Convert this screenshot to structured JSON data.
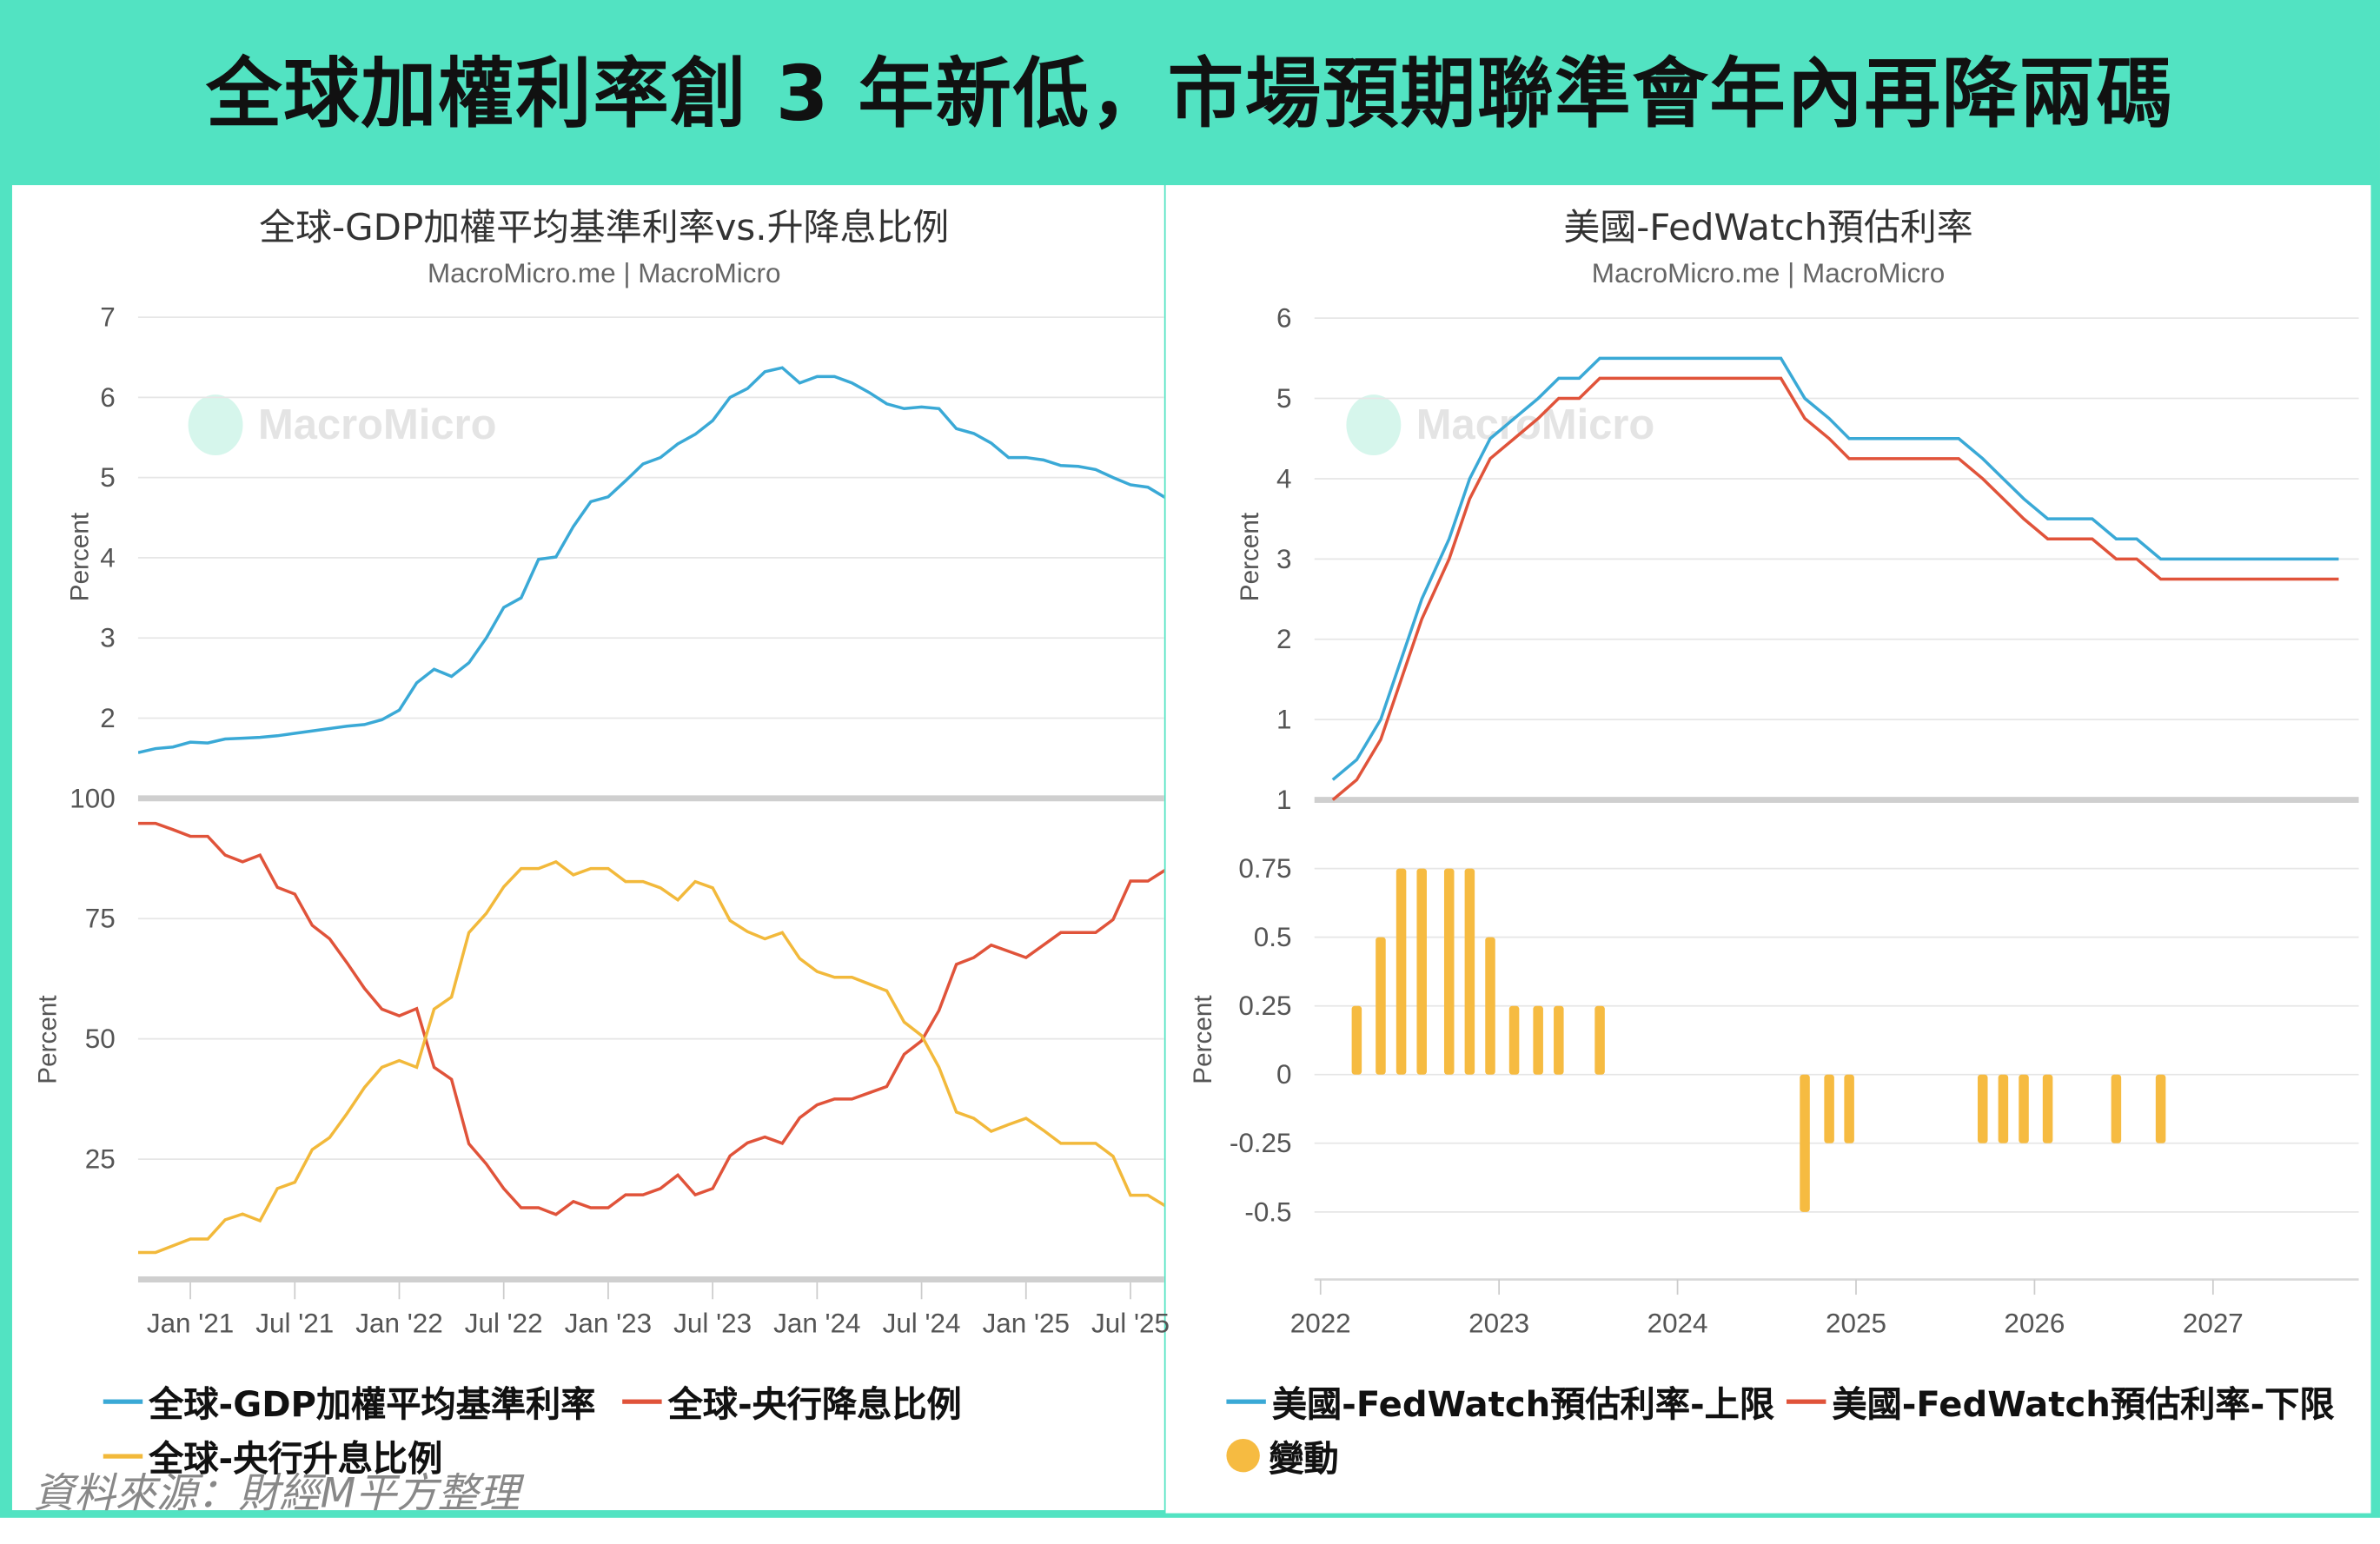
{
  "headline": "全球加權利率創 3 年新低，市場預期聯準會年內再降兩碼",
  "source_note": "資料來源：財經M平方整理",
  "watermark": "MacroMicro",
  "colors": {
    "frame": "#52e3c2",
    "blue": "#3aa9d6",
    "red": "#e0533a",
    "yellow": "#f2b93b",
    "bar": "#f6bb41"
  },
  "chart_data": [
    {
      "type": "line",
      "title": "全球-GDP加權平均基準利率vs.升降息比例",
      "subtitle": "MacroMicro.me | MacroMicro",
      "x_tick_labels": [
        "Jan '21",
        "Jul '21",
        "Jan '22",
        "Jul '22",
        "Jan '23",
        "Jul '23",
        "Jan '24",
        "Jul '24",
        "Jan '25",
        "Jul '25"
      ],
      "x_start": "2020-10",
      "x_end": "2025-09",
      "x_frequency": "monthly",
      "panes": [
        {
          "ylabel": "Percent",
          "ylim": [
            1,
            7
          ],
          "y_ticks": [
            2,
            3,
            4,
            5,
            6,
            7
          ],
          "series_index": [
            0
          ]
        },
        {
          "ylabel": "Percent",
          "ylim": [
            0,
            100
          ],
          "y_ticks": [
            25,
            50,
            75,
            100
          ],
          "series_index": [
            1,
            2
          ]
        }
      ],
      "series": [
        {
          "name": "全球-GDP加權平均基準利率",
          "color": "#3aa9d6",
          "values": [
            1.57,
            1.62,
            1.64,
            1.7,
            1.69,
            1.74,
            1.75,
            1.76,
            1.78,
            1.81,
            1.84,
            1.87,
            1.9,
            1.92,
            1.98,
            2.1,
            2.44,
            2.61,
            2.52,
            2.69,
            3.0,
            3.38,
            3.5,
            3.98,
            4.01,
            4.39,
            4.7,
            4.76,
            4.96,
            5.17,
            5.25,
            5.42,
            5.54,
            5.71,
            6.0,
            6.11,
            6.32,
            6.37,
            6.18,
            6.26,
            6.26,
            6.18,
            6.06,
            5.92,
            5.86,
            5.88,
            5.86,
            5.61,
            5.55,
            5.43,
            5.25,
            5.25,
            5.22,
            5.15,
            5.14,
            5.1,
            5.0,
            4.91,
            4.88,
            4.75
          ]
        },
        {
          "name": "全球-央行降息比例",
          "color": "#e0533a",
          "values": [
            94.8,
            94.8,
            93.5,
            92.1,
            92.1,
            88.2,
            86.8,
            88.2,
            81.5,
            80.1,
            73.6,
            70.8,
            65.8,
            60.5,
            56.2,
            54.8,
            56.3,
            44.1,
            41.6,
            28.2,
            24.0,
            18.9,
            14.9,
            14.9,
            13.5,
            16.2,
            14.9,
            14.9,
            17.6,
            17.6,
            18.9,
            21.7,
            17.6,
            18.9,
            25.7,
            28.4,
            29.6,
            28.3,
            33.6,
            36.3,
            37.5,
            37.5,
            38.8,
            40.1,
            46.8,
            49.6,
            55.9,
            65.5,
            66.9,
            69.5,
            68.2,
            66.9,
            69.5,
            72.1,
            72.1,
            72.1,
            74.8,
            82.8,
            82.8,
            85.1
          ]
        },
        {
          "name": "全球-央行升息比例",
          "color": "#f2b93b",
          "values": [
            5.6,
            5.6,
            7.0,
            8.4,
            8.4,
            12.4,
            13.6,
            12.2,
            18.9,
            20.2,
            27.0,
            29.5,
            34.5,
            39.9,
            44.1,
            45.5,
            44.1,
            56.2,
            58.7,
            72.1,
            76.1,
            81.6,
            85.4,
            85.4,
            86.8,
            84.1,
            85.4,
            85.4,
            82.7,
            82.7,
            81.4,
            78.9,
            82.7,
            81.4,
            74.6,
            72.3,
            70.8,
            72.1,
            66.7,
            64.0,
            62.8,
            62.8,
            61.4,
            60.0,
            53.5,
            50.7,
            44.1,
            34.8,
            33.5,
            30.8,
            32.2,
            33.5,
            31.0,
            28.3,
            28.3,
            28.3,
            25.6,
            17.5,
            17.5,
            15.3
          ]
        }
      ],
      "grid": true,
      "legend_position": "bottom"
    },
    {
      "type": "line+bar",
      "title": "美國-FedWatch預估利率",
      "subtitle": "MacroMicro.me | MacroMicro",
      "x_tick_labels": [
        "2022",
        "2023",
        "2024",
        "2025",
        "2026",
        "2027"
      ],
      "panes": [
        {
          "ylabel": "Percent",
          "ylim": [
            0,
            6
          ],
          "y_ticks": [
            1,
            2,
            3,
            4,
            5,
            6
          ]
        },
        {
          "ylabel": "Percent",
          "ylim": [
            -0.75,
            1
          ],
          "y_ticks": [
            -0.5,
            -0.25,
            0,
            0.25,
            0.5,
            0.75,
            1
          ],
          "y_tick_labels": [
            "-0.5",
            "-0.25",
            "0",
            "0.25",
            "0.5",
            "0.75",
            "1"
          ]
        }
      ],
      "series": [
        {
          "name": "美國-FedWatch預估利率-上限",
          "color": "#3aa9d6",
          "points": [
            [
              "2022-01-26",
              0.25
            ],
            [
              "2022-03-16",
              0.5
            ],
            [
              "2022-05-04",
              1.0
            ],
            [
              "2022-06-15",
              1.75
            ],
            [
              "2022-07-27",
              2.5
            ],
            [
              "2022-09-21",
              3.25
            ],
            [
              "2022-11-02",
              4.0
            ],
            [
              "2022-12-14",
              4.5
            ],
            [
              "2023-02-01",
              4.75
            ],
            [
              "2023-03-22",
              5.0
            ],
            [
              "2023-05-03",
              5.25
            ],
            [
              "2023-06-14",
              5.25
            ],
            [
              "2023-07-26",
              5.5
            ],
            [
              "2024-07-31",
              5.5
            ],
            [
              "2024-09-18",
              5.0
            ],
            [
              "2024-11-07",
              4.75
            ],
            [
              "2024-12-18",
              4.5
            ],
            [
              "2025-07-30",
              4.5
            ],
            [
              "2025-09-17",
              4.25
            ],
            [
              "2025-10-29",
              4.0
            ],
            [
              "2025-12-10",
              3.75
            ],
            [
              "2026-01-28",
              3.5
            ],
            [
              "2026-04-29",
              3.5
            ],
            [
              "2026-06-17",
              3.25
            ],
            [
              "2026-07-29",
              3.25
            ],
            [
              "2026-09-16",
              3.0
            ],
            [
              "2027-09-15",
              3.0
            ]
          ]
        },
        {
          "name": "美國-FedWatch預估利率-下限",
          "color": "#e0533a",
          "points": [
            [
              "2022-01-26",
              0.0
            ],
            [
              "2022-03-16",
              0.25
            ],
            [
              "2022-05-04",
              0.75
            ],
            [
              "2022-06-15",
              1.5
            ],
            [
              "2022-07-27",
              2.25
            ],
            [
              "2022-09-21",
              3.0
            ],
            [
              "2022-11-02",
              3.75
            ],
            [
              "2022-12-14",
              4.25
            ],
            [
              "2023-02-01",
              4.5
            ],
            [
              "2023-03-22",
              4.75
            ],
            [
              "2023-05-03",
              5.0
            ],
            [
              "2023-06-14",
              5.0
            ],
            [
              "2023-07-26",
              5.25
            ],
            [
              "2024-07-31",
              5.25
            ],
            [
              "2024-09-18",
              4.75
            ],
            [
              "2024-11-07",
              4.5
            ],
            [
              "2024-12-18",
              4.25
            ],
            [
              "2025-07-30",
              4.25
            ],
            [
              "2025-09-17",
              4.0
            ],
            [
              "2025-10-29",
              3.75
            ],
            [
              "2025-12-10",
              3.5
            ],
            [
              "2026-01-28",
              3.25
            ],
            [
              "2026-04-29",
              3.25
            ],
            [
              "2026-06-17",
              3.0
            ],
            [
              "2026-07-29",
              3.0
            ],
            [
              "2026-09-16",
              2.75
            ],
            [
              "2027-09-15",
              2.75
            ]
          ]
        },
        {
          "name": "變動",
          "type": "bar",
          "color": "#f6bb41",
          "points": [
            [
              "2022-03-16",
              0.25
            ],
            [
              "2022-05-04",
              0.5
            ],
            [
              "2022-06-15",
              0.75
            ],
            [
              "2022-07-27",
              0.75
            ],
            [
              "2022-09-21",
              0.75
            ],
            [
              "2022-11-02",
              0.75
            ],
            [
              "2022-12-14",
              0.5
            ],
            [
              "2023-02-01",
              0.25
            ],
            [
              "2023-03-22",
              0.25
            ],
            [
              "2023-05-03",
              0.25
            ],
            [
              "2023-07-26",
              0.25
            ],
            [
              "2024-09-18",
              -0.5
            ],
            [
              "2024-11-07",
              -0.25
            ],
            [
              "2024-12-18",
              -0.25
            ],
            [
              "2025-09-17",
              -0.25
            ],
            [
              "2025-10-29",
              -0.25
            ],
            [
              "2025-12-10",
              -0.25
            ],
            [
              "2026-01-28",
              -0.25
            ],
            [
              "2026-06-17",
              -0.25
            ],
            [
              "2026-09-16",
              -0.25
            ]
          ]
        }
      ],
      "grid": true,
      "legend_position": "bottom"
    }
  ]
}
